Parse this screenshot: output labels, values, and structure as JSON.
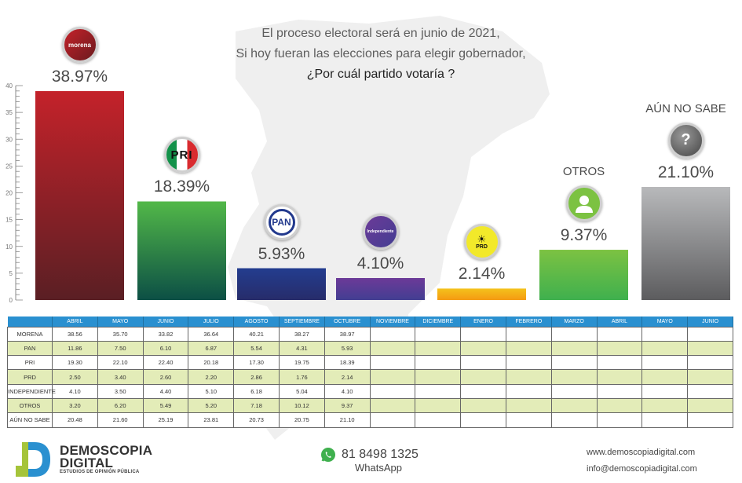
{
  "header": {
    "line1": "El proceso electoral será en junio de 2021,",
    "line2": "Si hoy fueran las elecciones para elegir gobernador,",
    "question": "¿Por cuál partido votaría ?"
  },
  "chart_data": {
    "type": "bar",
    "title": "¿Por cuál partido votaría ?",
    "subtitle": "El proceso electoral será en junio de 2021, Si hoy fueran las elecciones para elegir gobernador,",
    "xlabel": "",
    "ylabel": "",
    "ylim": [
      0,
      40
    ],
    "yticks": [
      0,
      5,
      10,
      15,
      20,
      25,
      30,
      35,
      40
    ],
    "grid": false,
    "categories": [
      "MORENA",
      "PRI",
      "PAN",
      "INDEPENDIENTE",
      "PRD",
      "OTROS",
      "AÚN NO SABE"
    ],
    "values": [
      38.97,
      18.39,
      5.93,
      4.1,
      2.14,
      9.37,
      21.1
    ],
    "value_labels": [
      "38.97%",
      "18.39%",
      "5.93%",
      "4.10%",
      "2.14%",
      "9.37%",
      "21.10%"
    ],
    "logo_text": [
      "morena",
      "PRI",
      "PAN",
      "Independiente",
      "PRD",
      "",
      "?"
    ],
    "text_labels": [
      "",
      "",
      "",
      "",
      "",
      "OTROS",
      "AÚN NO SABE"
    ],
    "colors": [
      {
        "top": "#c4222a",
        "bottom": "#5a1f24"
      },
      {
        "top": "#52b848",
        "bottom": "#0c4f45"
      },
      {
        "top": "#233d8f",
        "bottom": "#272c6a"
      },
      {
        "top": "#6c3a98",
        "bottom": "#433e92"
      },
      {
        "top": "#f4c21c",
        "bottom": "#f59a12"
      },
      {
        "top": "#7cc242",
        "bottom": "#3fb04e"
      },
      {
        "top": "#b8b9bb",
        "bottom": "#5c5c5e"
      }
    ]
  },
  "table": {
    "headers": [
      "",
      "ABRIL",
      "MAYO",
      "JUNIO",
      "JULIO",
      "AGOSTO",
      "SEPTIEMBRE",
      "OCTUBRE",
      "NOVIEMBRE",
      "DICIEMBRE",
      "ENERO",
      "FEBRERO",
      "MARZO",
      "ABRIL",
      "MAYO",
      "JUNIO"
    ],
    "rows": [
      [
        "MORENA",
        "38.56",
        "35.70",
        "33.82",
        "36.64",
        "40.21",
        "38.27",
        "38.97",
        "",
        "",
        "",
        "",
        "",
        "",
        "",
        ""
      ],
      [
        "PAN",
        "11.86",
        "7.50",
        "6.10",
        "6.87",
        "5.54",
        "4.31",
        "5.93",
        "",
        "",
        "",
        "",
        "",
        "",
        "",
        ""
      ],
      [
        "PRI",
        "19.30",
        "22.10",
        "22.40",
        "20.18",
        "17.30",
        "19.75",
        "18.39",
        "",
        "",
        "",
        "",
        "",
        "",
        "",
        ""
      ],
      [
        "PRD",
        "2.50",
        "3.40",
        "2.60",
        "2.20",
        "2.86",
        "1.76",
        "2.14",
        "",
        "",
        "",
        "",
        "",
        "",
        "",
        ""
      ],
      [
        "INDEPENDIENTE",
        "4.10",
        "3.50",
        "4.40",
        "5.10",
        "6.18",
        "5.04",
        "4.10",
        "",
        "",
        "",
        "",
        "",
        "",
        "",
        ""
      ],
      [
        "OTROS",
        "3.20",
        "6.20",
        "5.49",
        "5.20",
        "7.18",
        "10.12",
        "9.37",
        "",
        "",
        "",
        "",
        "",
        "",
        "",
        ""
      ],
      [
        "AÚN NO SABE",
        "20.48",
        "21.60",
        "25.19",
        "23.81",
        "20.73",
        "20.75",
        "21.10",
        "",
        "",
        "",
        "",
        "",
        "",
        "",
        ""
      ]
    ]
  },
  "footer": {
    "brand_line1": "DEMOSCOPIA",
    "brand_line2": "DIGITAL",
    "brand_tagline": "ESTUDIOS DE OPINIÓN PÚBLICA",
    "phone": "81 8498 1325",
    "phone_label": "WhatsApp",
    "website": "www.demoscopiadigital.com",
    "email": "info@demoscopiadigital.com"
  },
  "icons": {
    "phone": "whatsapp-icon",
    "otros": "user-icon",
    "aun_no_sabe": "question-icon"
  }
}
